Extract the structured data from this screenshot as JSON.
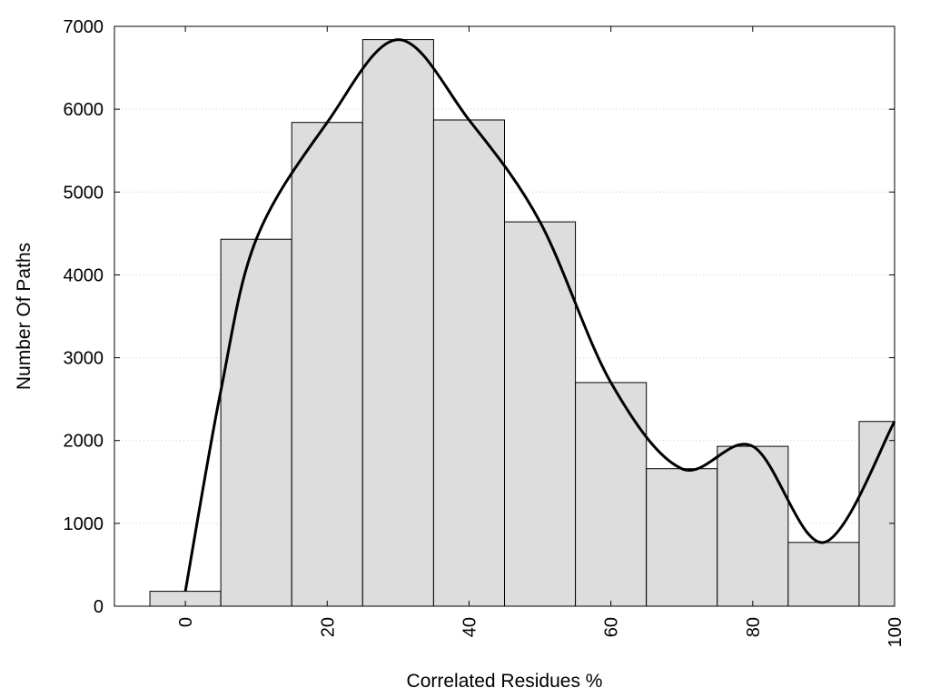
{
  "chart_data": {
    "type": "bar",
    "title": "",
    "xlabel": "Correlated Residues %",
    "ylabel": "Number Of Paths",
    "xlim": [
      -10,
      100
    ],
    "ylim": [
      0,
      7000
    ],
    "grid": "horizontal-dotted",
    "bar_color": "#dddddd",
    "line_color": "#000000",
    "x_ticks": [
      0,
      20,
      40,
      60,
      80,
      100
    ],
    "x_tick_labels": [
      "0",
      "20",
      "40",
      "60",
      "80",
      "100"
    ],
    "y_ticks": [
      0,
      1000,
      2000,
      3000,
      4000,
      5000,
      6000,
      7000
    ],
    "y_tick_labels": [
      "0",
      "1000",
      "2000",
      "3000",
      "4000",
      "5000",
      "6000",
      "7000"
    ],
    "bins": [
      {
        "x": 0,
        "value": 180
      },
      {
        "x": 10,
        "value": 4430
      },
      {
        "x": 20,
        "value": 5840
      },
      {
        "x": 30,
        "value": 6840
      },
      {
        "x": 40,
        "value": 5870
      },
      {
        "x": 50,
        "value": 4640
      },
      {
        "x": 60,
        "value": 2700
      },
      {
        "x": 70,
        "value": 1660
      },
      {
        "x": 80,
        "value": 1930
      },
      {
        "x": 90,
        "value": 770
      },
      {
        "x": 100,
        "value": 2230
      }
    ],
    "bin_width": 10,
    "smooth_curve": {
      "x": [
        0,
        5,
        10,
        20,
        30,
        40,
        50,
        60,
        70,
        80,
        90,
        100
      ],
      "y": [
        180,
        2600,
        4430,
        5840,
        6840,
        5870,
        4640,
        2700,
        1660,
        1930,
        770,
        2230
      ]
    }
  }
}
